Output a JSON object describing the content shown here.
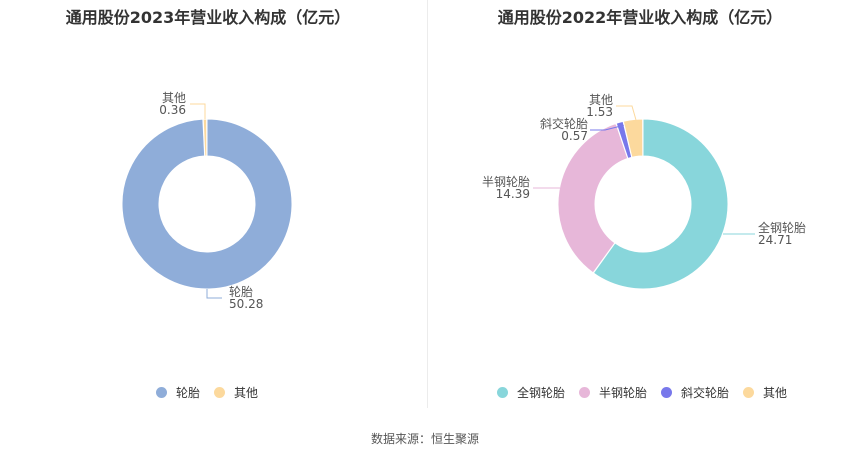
{
  "chart_data": [
    {
      "type": "pie",
      "title": "通用股份2023年营业收入构成（亿元）",
      "categories": [
        "轮胎",
        "其他"
      ],
      "values": [
        50.28,
        0.36
      ],
      "colors": [
        "#8fadd9",
        "#fcd99d"
      ],
      "legend": "bottom"
    },
    {
      "type": "pie",
      "title": "通用股份2022年营业收入构成（亿元）",
      "categories": [
        "全钢轮胎",
        "半钢轮胎",
        "斜交轮胎",
        "其他"
      ],
      "values": [
        24.71,
        14.39,
        0.57,
        1.53
      ],
      "colors": [
        "#88d6db",
        "#e7b7d9",
        "#7878eb",
        "#fcd99d"
      ],
      "legend": "bottom"
    }
  ],
  "source": "数据来源：恒生聚源"
}
